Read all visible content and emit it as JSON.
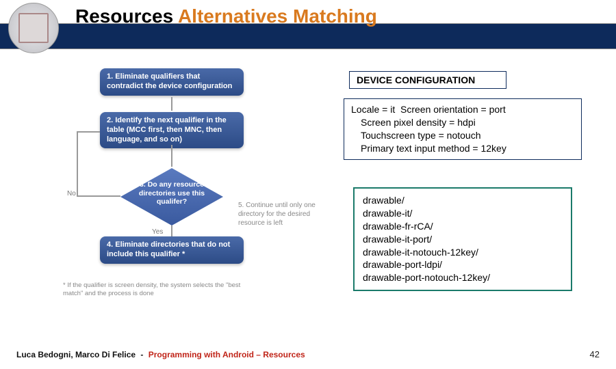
{
  "colors": {
    "header_bar": "#0d2a5b",
    "title_orange": "#d97a1f",
    "step_gradient_top": "#4a6aa8",
    "step_gradient_bottom": "#2c4b86",
    "box_border_blue": "#0d2a5b",
    "box_border_teal": "#1a7a6a",
    "footer_red": "#c02418",
    "flow_gray": "#888888"
  },
  "title": {
    "part1": "Resources ",
    "part2": "Alternatives Matching"
  },
  "flowchart": {
    "step1": "1. Eliminate qualifiers that contradict the device configuration",
    "step2": "2. Identify the next qualifier in the table (MCC first, then MNC, then language, and so on)",
    "step3": "3. Do any resource directories use this qualifer?",
    "step4": "4. Eliminate directories that do not include this qualifier *",
    "no": "No",
    "yes": "Yes",
    "step5": "5. Continue until only one directory for the desired resource is left",
    "footnote": "* If the qualifier is screen density, the system selects the \"best match\" and the process is done"
  },
  "device_config": {
    "heading": "DEVICE CONFIGURATION",
    "line1a": "Locale = it",
    "line1b": "Screen orientation = port",
    "line2": "Screen pixel density = hdpi",
    "line3": "Touchscreen type = notouch",
    "line4": "Primary text input method = 12key"
  },
  "directories": {
    "d0": "drawable/",
    "d1": "drawable-it/",
    "d2": "drawable-fr-rCA/",
    "d3": "drawable-it-port/",
    "d4": "drawable-it-notouch-12key/",
    "d5": "drawable-port-ldpi/",
    "d6": "drawable-port-notouch-12key/"
  },
  "footer": {
    "authors": "Luca Bedogni, Marco Di Felice",
    "dash": "-",
    "course": "Programming with Android – Resources",
    "page": "42"
  }
}
